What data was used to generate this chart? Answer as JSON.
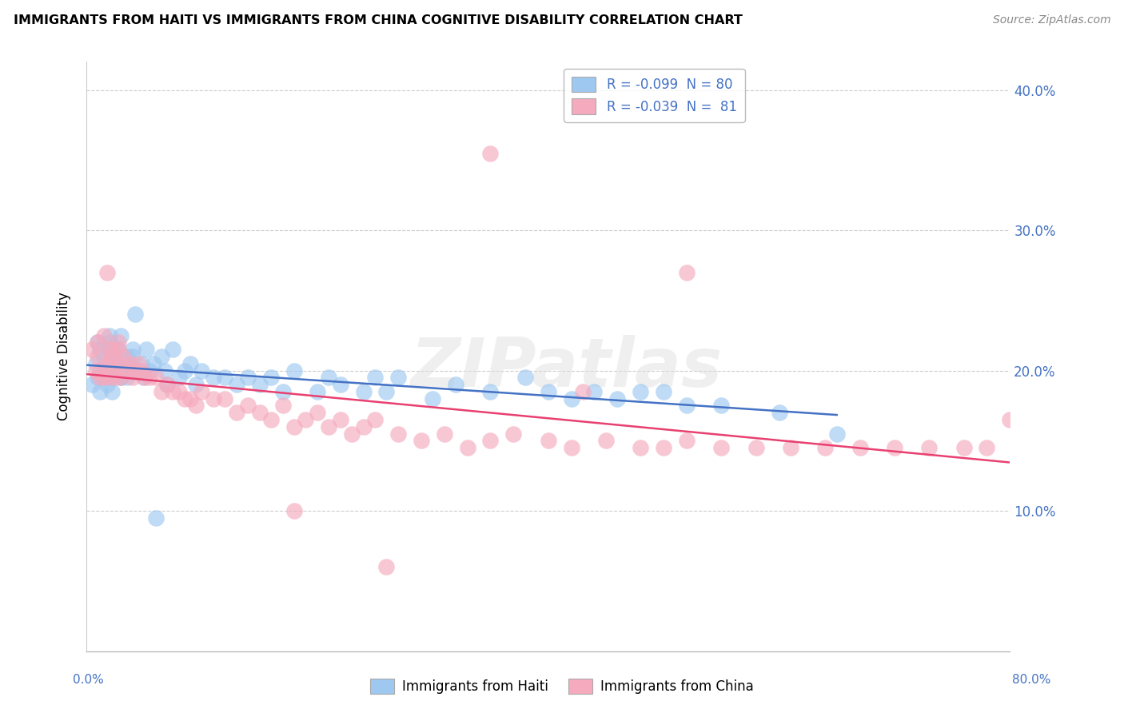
{
  "title": "IMMIGRANTS FROM HAITI VS IMMIGRANTS FROM CHINA COGNITIVE DISABILITY CORRELATION CHART",
  "source": "Source: ZipAtlas.com",
  "ylabel": "Cognitive Disability",
  "yticks_labels": [
    "10.0%",
    "20.0%",
    "30.0%",
    "40.0%"
  ],
  "ytick_values": [
    0.1,
    0.2,
    0.3,
    0.4
  ],
  "legend_haiti": "R = -0.099  N = 80",
  "legend_china": "R = -0.039  N =  81",
  "haiti_R": -0.099,
  "haiti_N": 80,
  "china_R": -0.039,
  "china_N": 81,
  "color_haiti": "#9EC8F0",
  "color_china": "#F5AABE",
  "line_color_haiti": "#4472C4",
  "line_color_china": "#E84070",
  "xlim": [
    0.0,
    0.8
  ],
  "ylim": [
    0.0,
    0.42
  ],
  "haiti_x": [
    0.005,
    0.008,
    0.01,
    0.012,
    0.015,
    0.01,
    0.012,
    0.015,
    0.018,
    0.02,
    0.015,
    0.018,
    0.02,
    0.022,
    0.025,
    0.02,
    0.022,
    0.025,
    0.028,
    0.022,
    0.025,
    0.028,
    0.03,
    0.025,
    0.03,
    0.028,
    0.032,
    0.035,
    0.03,
    0.035,
    0.038,
    0.04,
    0.035,
    0.04,
    0.045,
    0.042,
    0.05,
    0.048,
    0.052,
    0.055,
    0.06,
    0.058,
    0.065,
    0.07,
    0.068,
    0.075,
    0.08,
    0.085,
    0.09,
    0.095,
    0.1,
    0.11,
    0.12,
    0.13,
    0.14,
    0.15,
    0.16,
    0.17,
    0.18,
    0.2,
    0.21,
    0.22,
    0.24,
    0.25,
    0.26,
    0.27,
    0.3,
    0.32,
    0.35,
    0.38,
    0.4,
    0.42,
    0.44,
    0.46,
    0.48,
    0.5,
    0.52,
    0.55,
    0.6,
    0.65
  ],
  "haiti_y": [
    0.19,
    0.205,
    0.195,
    0.215,
    0.2,
    0.22,
    0.185,
    0.21,
    0.195,
    0.225,
    0.2,
    0.19,
    0.215,
    0.205,
    0.2,
    0.22,
    0.195,
    0.21,
    0.2,
    0.185,
    0.215,
    0.2,
    0.225,
    0.205,
    0.195,
    0.215,
    0.2,
    0.21,
    0.195,
    0.205,
    0.2,
    0.215,
    0.195,
    0.21,
    0.2,
    0.24,
    0.195,
    0.205,
    0.215,
    0.2,
    0.095,
    0.205,
    0.21,
    0.19,
    0.2,
    0.215,
    0.195,
    0.2,
    0.205,
    0.19,
    0.2,
    0.195,
    0.195,
    0.19,
    0.195,
    0.19,
    0.195,
    0.185,
    0.2,
    0.185,
    0.195,
    0.19,
    0.185,
    0.195,
    0.185,
    0.195,
    0.18,
    0.19,
    0.185,
    0.195,
    0.185,
    0.18,
    0.185,
    0.18,
    0.185,
    0.185,
    0.175,
    0.175,
    0.17,
    0.155
  ],
  "china_x": [
    0.005,
    0.008,
    0.01,
    0.012,
    0.01,
    0.015,
    0.018,
    0.012,
    0.02,
    0.015,
    0.018,
    0.02,
    0.022,
    0.02,
    0.025,
    0.022,
    0.028,
    0.025,
    0.03,
    0.028,
    0.03,
    0.035,
    0.032,
    0.038,
    0.04,
    0.042,
    0.045,
    0.05,
    0.048,
    0.055,
    0.06,
    0.065,
    0.07,
    0.075,
    0.08,
    0.085,
    0.09,
    0.095,
    0.1,
    0.11,
    0.12,
    0.13,
    0.14,
    0.15,
    0.16,
    0.17,
    0.18,
    0.19,
    0.2,
    0.21,
    0.22,
    0.23,
    0.24,
    0.25,
    0.27,
    0.29,
    0.31,
    0.33,
    0.35,
    0.37,
    0.4,
    0.42,
    0.45,
    0.48,
    0.5,
    0.52,
    0.55,
    0.58,
    0.61,
    0.64,
    0.67,
    0.7,
    0.73,
    0.76,
    0.78,
    0.8,
    0.35,
    0.18,
    0.52,
    0.43,
    0.26
  ],
  "china_y": [
    0.215,
    0.2,
    0.22,
    0.195,
    0.21,
    0.225,
    0.205,
    0.2,
    0.215,
    0.195,
    0.27,
    0.205,
    0.215,
    0.195,
    0.2,
    0.21,
    0.22,
    0.195,
    0.205,
    0.215,
    0.195,
    0.2,
    0.21,
    0.205,
    0.195,
    0.2,
    0.205,
    0.195,
    0.2,
    0.195,
    0.195,
    0.185,
    0.19,
    0.185,
    0.185,
    0.18,
    0.18,
    0.175,
    0.185,
    0.18,
    0.18,
    0.17,
    0.175,
    0.17,
    0.165,
    0.175,
    0.16,
    0.165,
    0.17,
    0.16,
    0.165,
    0.155,
    0.16,
    0.165,
    0.155,
    0.15,
    0.155,
    0.145,
    0.15,
    0.155,
    0.15,
    0.145,
    0.15,
    0.145,
    0.145,
    0.15,
    0.145,
    0.145,
    0.145,
    0.145,
    0.145,
    0.145,
    0.145,
    0.145,
    0.145,
    0.165,
    0.355,
    0.1,
    0.27,
    0.185,
    0.06
  ]
}
